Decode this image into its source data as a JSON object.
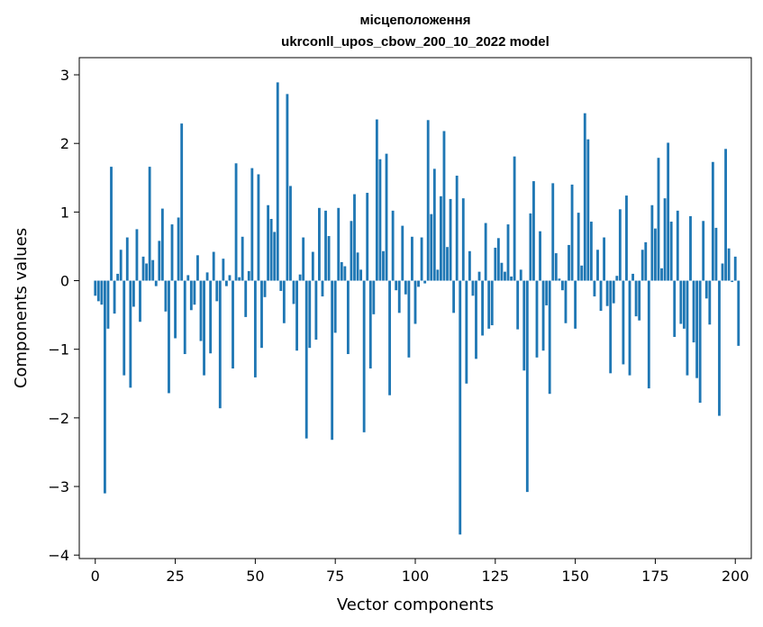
{
  "chart_data": {
    "type": "bar",
    "title": "місцеположення",
    "subtitle": "ukrconll_upos_cbow_200_10_2022 model",
    "xlabel": "Vector components",
    "ylabel": "Components values",
    "xlim": [
      -5,
      205
    ],
    "ylim": [
      -4.05,
      3.25
    ],
    "xticks": [
      0,
      25,
      50,
      75,
      100,
      125,
      150,
      175,
      200
    ],
    "xtick_labels": [
      "0",
      "25",
      "50",
      "75",
      "100",
      "125",
      "150",
      "175",
      "200"
    ],
    "yticks": [
      -4,
      -3,
      -2,
      -1,
      0,
      1,
      2,
      3
    ],
    "ytick_labels": [
      "−4",
      "−3",
      "−2",
      "−1",
      "0",
      "1",
      "2",
      "3"
    ],
    "grid": false,
    "bar_color": "#1f77b4",
    "values": [
      -0.22,
      -0.3,
      -0.35,
      -3.1,
      -0.7,
      1.66,
      -0.48,
      0.1,
      0.45,
      -1.38,
      0.63,
      -1.56,
      -0.38,
      0.75,
      -0.6,
      0.35,
      0.25,
      1.66,
      0.3,
      -0.08,
      0.58,
      1.05,
      -0.45,
      -1.64,
      0.82,
      -0.84,
      0.92,
      2.29,
      -1.07,
      0.08,
      -0.43,
      -0.35,
      0.37,
      -0.88,
      -1.38,
      0.12,
      -1.06,
      0.42,
      -0.3,
      -1.86,
      0.32,
      -0.08,
      0.08,
      -1.28,
      1.71,
      0.05,
      0.64,
      -0.53,
      0.14,
      1.64,
      -1.41,
      1.55,
      -0.98,
      -0.24,
      1.1,
      0.9,
      0.71,
      2.89,
      -0.15,
      -0.62,
      2.72,
      1.38,
      -0.34,
      -1.02,
      0.09,
      0.63,
      -2.3,
      -0.98,
      0.42,
      -0.86,
      1.06,
      -0.23,
      1.02,
      0.65,
      -2.32,
      -0.76,
      1.06,
      0.27,
      0.21,
      -1.07,
      0.87,
      1.26,
      0.41,
      0.16,
      -2.21,
      1.28,
      -1.28,
      -0.49,
      2.35,
      1.77,
      0.43,
      1.85,
      -1.67,
      1.02,
      -0.14,
      -0.47,
      0.8,
      -0.2,
      -1.12,
      0.64,
      -0.63,
      -0.09,
      0.63,
      -0.04,
      2.34,
      0.97,
      1.63,
      0.16,
      1.23,
      2.18,
      0.49,
      1.19,
      -0.47,
      1.53,
      -3.7,
      1.2,
      -1.5,
      0.43,
      -0.22,
      -1.14,
      0.13,
      -0.8,
      0.84,
      -0.7,
      -0.65,
      0.48,
      0.62,
      0.26,
      0.13,
      0.82,
      0.06,
      1.81,
      -0.71,
      0.16,
      -1.31,
      -3.08,
      0.98,
      1.45,
      -1.12,
      0.72,
      -1.02,
      -0.36,
      -1.65,
      1.42,
      0.4,
      0.03,
      -0.14,
      -0.62,
      0.52,
      1.4,
      -0.7,
      0.99,
      0.22,
      2.44,
      2.06,
      0.86,
      -0.23,
      0.45,
      -0.44,
      0.63,
      -0.37,
      -1.35,
      -0.33,
      0.07,
      1.04,
      -1.22,
      1.24,
      -1.38,
      0.1,
      -0.52,
      -0.58,
      0.45,
      0.56,
      -1.57,
      1.1,
      0.76,
      1.79,
      0.18,
      1.2,
      2.01,
      0.86,
      -0.82,
      1.02,
      -0.63,
      -0.7,
      -1.38,
      0.94,
      -0.9,
      -1.42,
      -1.78,
      0.87,
      -0.26,
      -0.64,
      1.73,
      0.77,
      -1.97,
      0.25,
      1.92,
      0.47,
      -0.02,
      0.35,
      -0.95
    ]
  }
}
